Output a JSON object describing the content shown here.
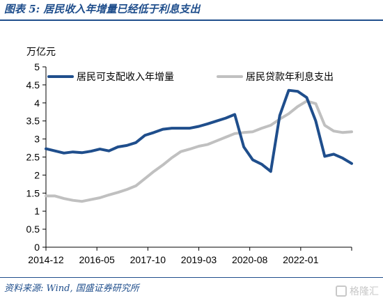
{
  "figure": {
    "title": "图表 5: 居民收入年增量已经低于利息支出",
    "unit": "万亿元",
    "source": "资料来源: Wind, 国盛证券研究所",
    "watermark": "格隆汇"
  },
  "chart_data": {
    "type": "line",
    "title": "",
    "xlabel": "",
    "ylabel": "万亿元",
    "ylim": [
      0,
      5
    ],
    "yticks": [
      "0",
      "0.5",
      "1",
      "1.5",
      "2",
      "2.5",
      "3",
      "3.5",
      "4",
      "4.5",
      "5"
    ],
    "xticks": [
      "2014-12",
      "2016-05",
      "2017-10",
      "2019-03",
      "2020-08",
      "2022-01"
    ],
    "grid": false,
    "legend_position": "top",
    "series": [
      {
        "name": "居民可支配收入年增量",
        "color": "#1f4e8c",
        "values": [
          2.73,
          2.67,
          2.61,
          2.64,
          2.62,
          2.66,
          2.72,
          2.67,
          2.78,
          2.82,
          2.9,
          3.1,
          3.18,
          3.27,
          3.3,
          3.3,
          3.3,
          3.35,
          3.42,
          3.5,
          3.58,
          3.68,
          2.78,
          2.42,
          2.3,
          2.1,
          3.65,
          4.35,
          4.32,
          4.15,
          3.5,
          2.52,
          2.58,
          2.47,
          2.32
        ]
      },
      {
        "name": "居民贷款年利息支出",
        "color": "#c0c0c0",
        "values": [
          1.42,
          1.42,
          1.35,
          1.3,
          1.27,
          1.32,
          1.37,
          1.45,
          1.52,
          1.6,
          1.7,
          1.9,
          2.1,
          2.28,
          2.48,
          2.65,
          2.72,
          2.8,
          2.85,
          2.95,
          3.05,
          3.15,
          3.18,
          3.2,
          3.3,
          3.38,
          3.55,
          3.7,
          3.9,
          4.05,
          3.98,
          3.38,
          3.22,
          3.18,
          3.2
        ]
      }
    ]
  }
}
